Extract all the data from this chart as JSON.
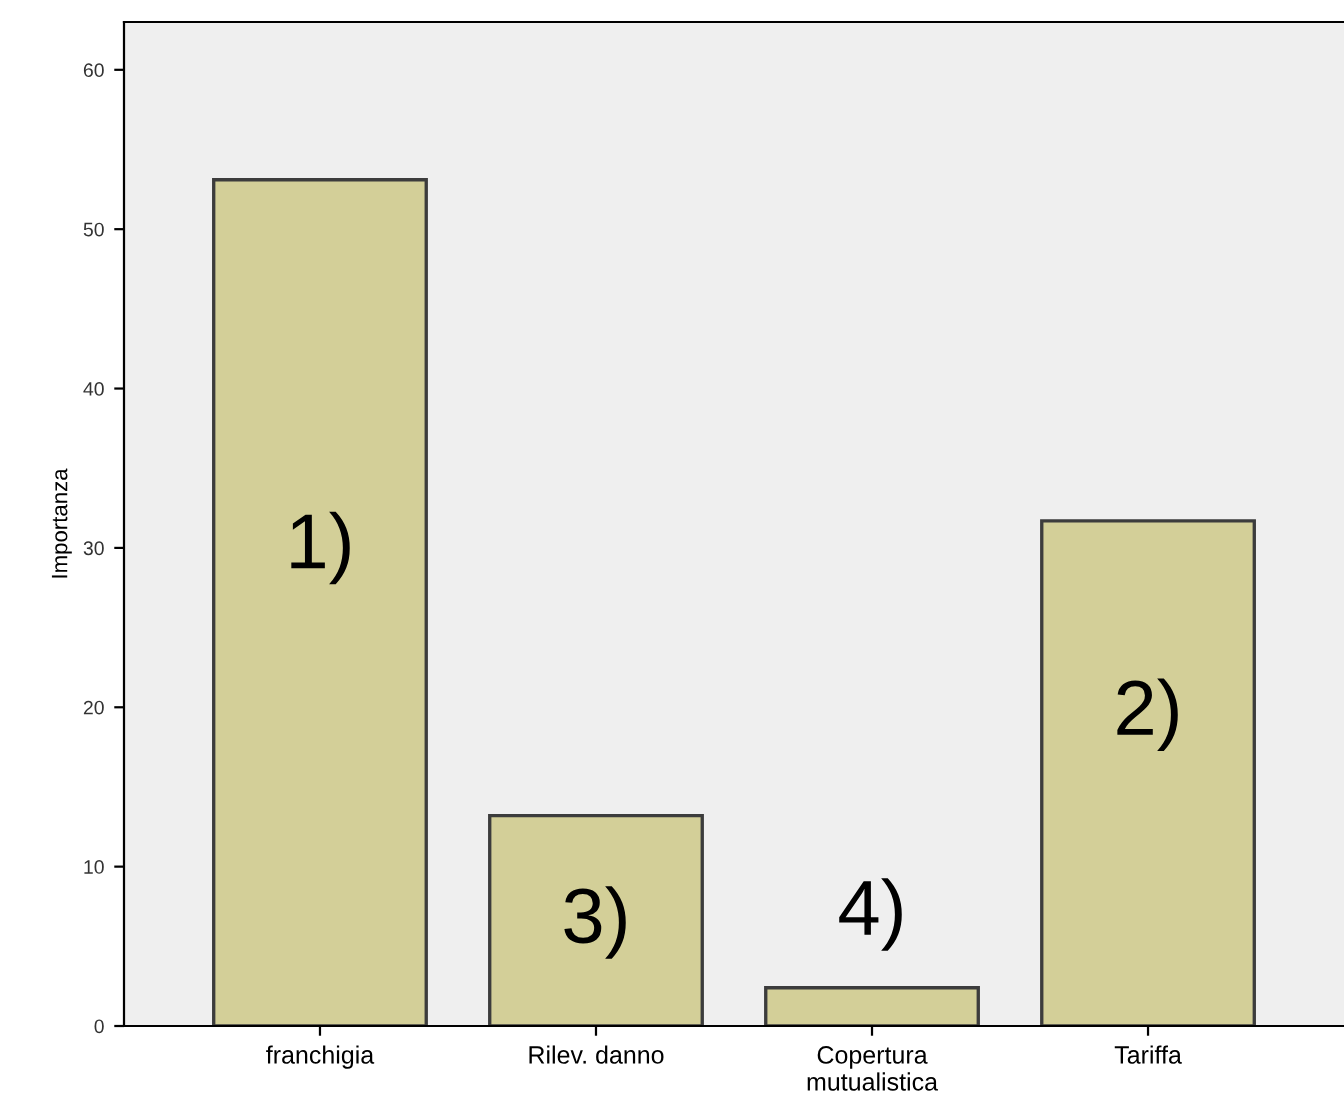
{
  "chart_data": {
    "type": "bar",
    "ylabel": "Importanza",
    "categories": [
      "franchigia",
      "Rilev. danno",
      "Copertura\nmutualistica",
      "Tariffa"
    ],
    "values": [
      53.1,
      13.2,
      2.4,
      31.7
    ],
    "color": "#d3cf98",
    "ylim": [
      0,
      63
    ],
    "yticks": [
      0,
      10,
      20,
      30,
      40,
      50,
      60
    ],
    "grid": false,
    "annotations": [
      "1)",
      "3)",
      "4)",
      "2)"
    ]
  }
}
